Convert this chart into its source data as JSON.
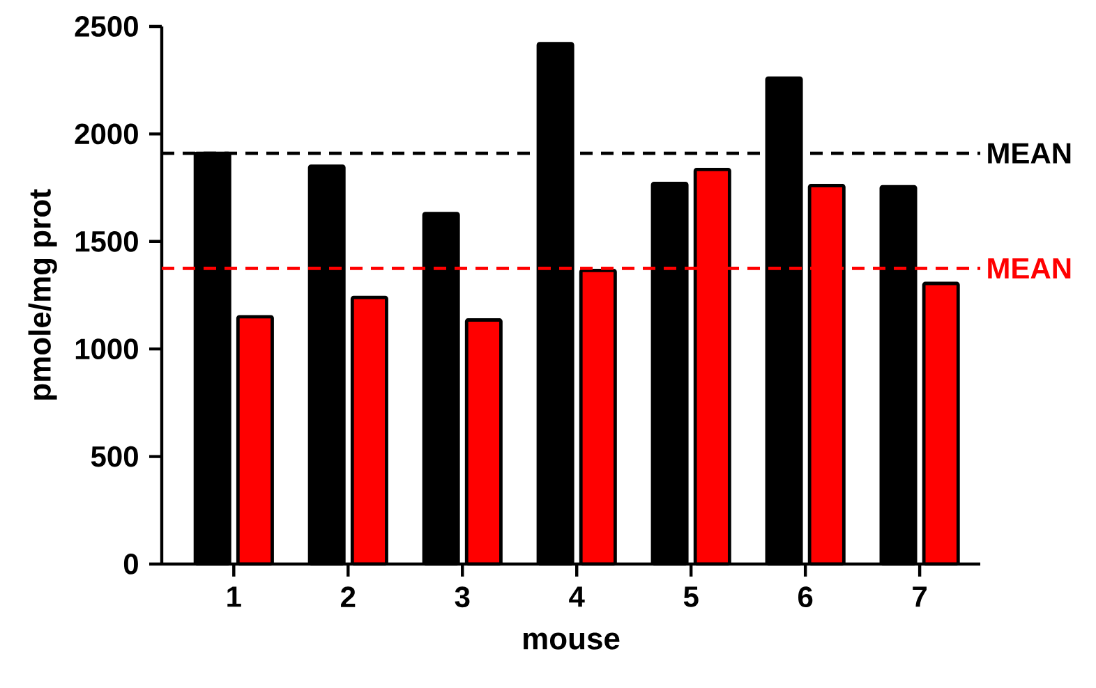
{
  "chart_data": {
    "type": "bar",
    "xlabel": "mouse",
    "ylabel": "pmole/mg prot",
    "categories": [
      "1",
      "2",
      "3",
      "4",
      "5",
      "6",
      "7"
    ],
    "series": [
      {
        "color": "#000000",
        "values": [
          1910,
          1850,
          1630,
          2420,
          1770,
          2260,
          1755
        ]
      },
      {
        "color": "#ff0000",
        "values": [
          1150,
          1240,
          1135,
          1365,
          1835,
          1760,
          1305
        ]
      }
    ],
    "ylim": [
      0,
      2500
    ],
    "yticks": [
      0,
      500,
      1000,
      1500,
      2000,
      2500
    ],
    "ref_lines": [
      {
        "axis": "y",
        "value": 1910,
        "label": "MEAN",
        "color": "#000000",
        "line_style": "dashed"
      },
      {
        "axis": "y",
        "value": 1375,
        "label": "MEAN",
        "color": "#ff0000",
        "line_style": "dashed"
      }
    ]
  }
}
